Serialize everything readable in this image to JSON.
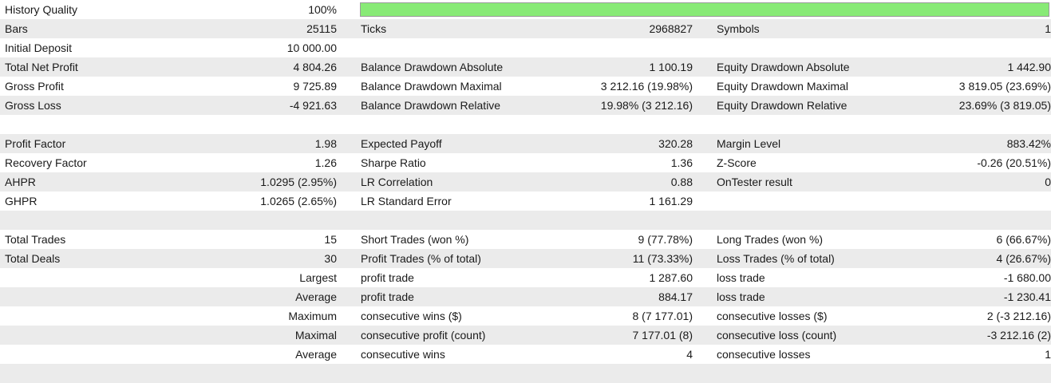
{
  "history": {
    "label": "History Quality",
    "value": "100%",
    "quality": 1.0,
    "bar_color": "#88ea76"
  },
  "rows": [
    {
      "c1": "Bars",
      "c2": "25115",
      "c3": "Ticks",
      "c4": "2968827",
      "c5": "Symbols",
      "c6": "1"
    },
    {
      "c1": "Initial Deposit",
      "c2": "10 000.00",
      "c3": "",
      "c4": "",
      "c5": "",
      "c6": ""
    },
    {
      "c1": "Total Net Profit",
      "c2": "4 804.26",
      "c3": "Balance Drawdown Absolute",
      "c4": "1 100.19",
      "c5": "Equity Drawdown Absolute",
      "c6": "1 442.90"
    },
    {
      "c1": "Gross Profit",
      "c2": "9 725.89",
      "c3": "Balance Drawdown Maximal",
      "c4": "3 212.16 (19.98%)",
      "c5": "Equity Drawdown Maximal",
      "c6": "3 819.05 (23.69%)"
    },
    {
      "c1": "Gross Loss",
      "c2": "-4 921.63",
      "c3": "Balance Drawdown Relative",
      "c4": "19.98% (3 212.16)",
      "c5": "Equity Drawdown Relative",
      "c6": "23.69% (3 819.05)"
    },
    {
      "c1": "",
      "c2": "",
      "c3": "",
      "c4": "",
      "c5": "",
      "c6": ""
    },
    {
      "c1": "Profit Factor",
      "c2": "1.98",
      "c3": "Expected Payoff",
      "c4": "320.28",
      "c5": "Margin Level",
      "c6": "883.42%"
    },
    {
      "c1": "Recovery Factor",
      "c2": "1.26",
      "c3": "Sharpe Ratio",
      "c4": "1.36",
      "c5": "Z-Score",
      "c6": "-0.26 (20.51%)"
    },
    {
      "c1": "AHPR",
      "c2": "1.0295 (2.95%)",
      "c3": "LR Correlation",
      "c4": "0.88",
      "c5": "OnTester result",
      "c6": "0"
    },
    {
      "c1": "GHPR",
      "c2": "1.0265 (2.65%)",
      "c3": "LR Standard Error",
      "c4": "1 161.29",
      "c5": "",
      "c6": ""
    },
    {
      "c1": "",
      "c2": "",
      "c3": "",
      "c4": "",
      "c5": "",
      "c6": ""
    },
    {
      "c1": "Total Trades",
      "c2": "15",
      "c3": "Short Trades (won %)",
      "c4": "9 (77.78%)",
      "c5": "Long Trades (won %)",
      "c6": "6 (66.67%)"
    },
    {
      "c1": "Total Deals",
      "c2": "30",
      "c3": "Profit Trades (% of total)",
      "c4": "11 (73.33%)",
      "c5": "Loss Trades (% of total)",
      "c6": "4 (26.67%)"
    },
    {
      "c1": "",
      "c2": "Largest",
      "c3": "profit trade",
      "c4": "1 287.60",
      "c5": "loss trade",
      "c6": "-1 680.00"
    },
    {
      "c1": "",
      "c2": "Average",
      "c3": "profit trade",
      "c4": "884.17",
      "c5": "loss trade",
      "c6": "-1 230.41"
    },
    {
      "c1": "",
      "c2": "Maximum",
      "c3": "consecutive wins ($)",
      "c4": "8 (7 177.01)",
      "c5": "consecutive losses ($)",
      "c6": "2 (-3 212.16)"
    },
    {
      "c1": "",
      "c2": "Maximal",
      "c3": "consecutive profit (count)",
      "c4": "7 177.01 (8)",
      "c5": "consecutive loss (count)",
      "c6": "-3 212.16 (2)"
    },
    {
      "c1": "",
      "c2": "Average",
      "c3": "consecutive wins",
      "c4": "4",
      "c5": "consecutive losses",
      "c6": "1"
    },
    {
      "c1": "",
      "c2": "",
      "c3": "",
      "c4": "",
      "c5": "",
      "c6": ""
    }
  ]
}
